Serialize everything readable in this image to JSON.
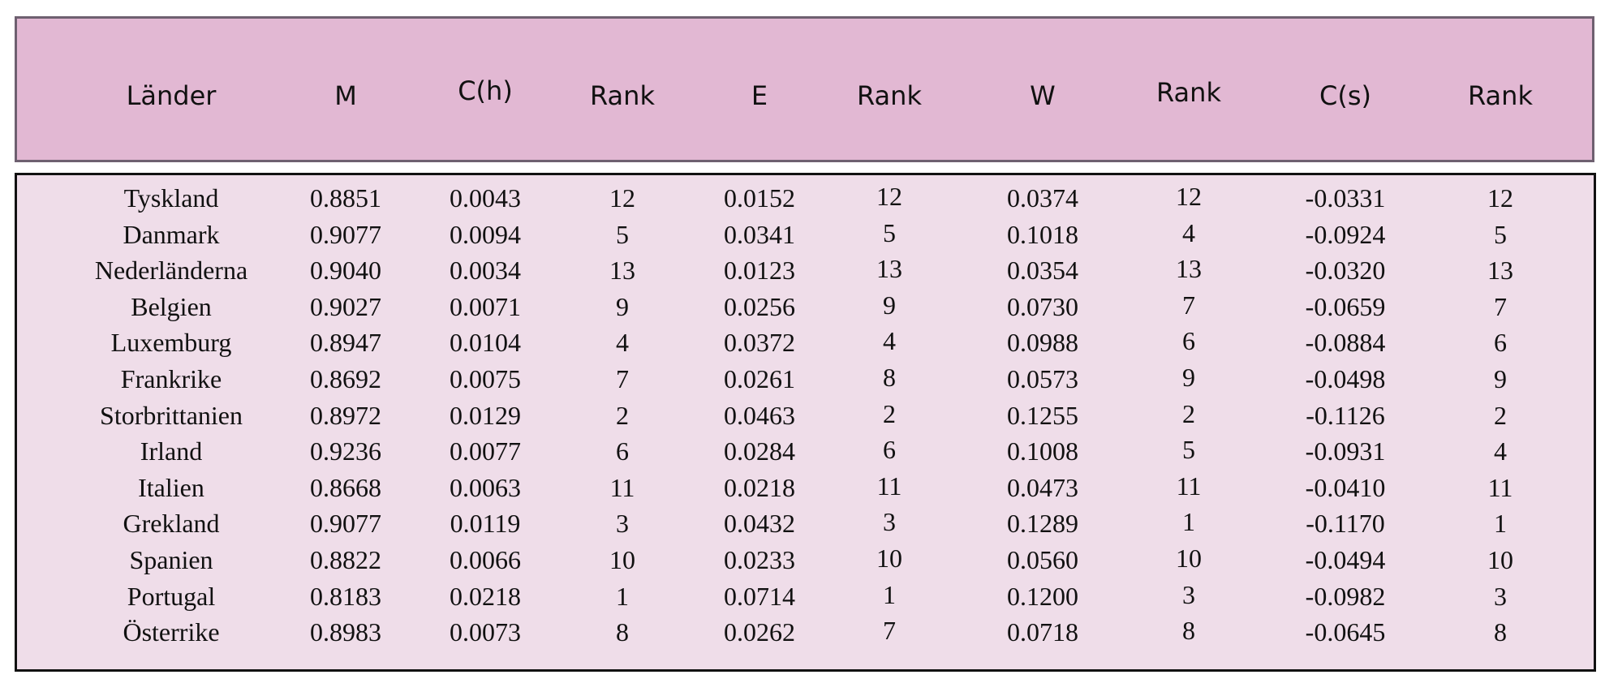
{
  "table": {
    "columns": [
      "Länder",
      "M",
      "C(h)",
      "Rank",
      "E",
      "Rank",
      "W",
      "Rank",
      "C(s)",
      "Rank"
    ],
    "rows": [
      [
        "Tyskland",
        "0.8851",
        "0.0043",
        "12",
        "0.0152",
        "12",
        "0.0374",
        "12",
        "-0.0331",
        "12"
      ],
      [
        "Danmark",
        "0.9077",
        "0.0094",
        "5",
        "0.0341",
        "5",
        "0.1018",
        "4",
        "-0.0924",
        "5"
      ],
      [
        "Nederländerna",
        "0.9040",
        "0.0034",
        "13",
        "0.0123",
        "13",
        "0.0354",
        "13",
        "-0.0320",
        "13"
      ],
      [
        "Belgien",
        "0.9027",
        "0.0071",
        "9",
        "0.0256",
        "9",
        "0.0730",
        "7",
        "-0.0659",
        "7"
      ],
      [
        "Luxemburg",
        "0.8947",
        "0.0104",
        "4",
        "0.0372",
        "4",
        "0.0988",
        "6",
        "-0.0884",
        "6"
      ],
      [
        "Frankrike",
        "0.8692",
        "0.0075",
        "7",
        "0.0261",
        "8",
        "0.0573",
        "9",
        "-0.0498",
        "9"
      ],
      [
        "Storbrittanien",
        "0.8972",
        "0.0129",
        "2",
        "0.0463",
        "2",
        "0.1255",
        "2",
        "-0.1126",
        "2"
      ],
      [
        "Irland",
        "0.9236",
        "0.0077",
        "6",
        "0.0284",
        "6",
        "0.1008",
        "5",
        "-0.0931",
        "4"
      ],
      [
        "Italien",
        "0.8668",
        "0.0063",
        "11",
        "0.0218",
        "11",
        "0.0473",
        "11",
        "-0.0410",
        "11"
      ],
      [
        "Grekland",
        "0.9077",
        "0.0119",
        "3",
        "0.0432",
        "3",
        "0.1289",
        "1",
        "-0.1170",
        "1"
      ],
      [
        "Spanien",
        "0.8822",
        "0.0066",
        "10",
        "0.0233",
        "10",
        "0.0560",
        "10",
        "-0.0494",
        "10"
      ],
      [
        "Portugal",
        "0.8183",
        "0.0218",
        "1",
        "0.0714",
        "1",
        "0.1200",
        "3",
        "-0.0982",
        "3"
      ],
      [
        "Österrike",
        "0.8983",
        "0.0073",
        "8",
        "0.0262",
        "7",
        "0.0718",
        "8",
        "-0.0645",
        "8"
      ]
    ]
  }
}
